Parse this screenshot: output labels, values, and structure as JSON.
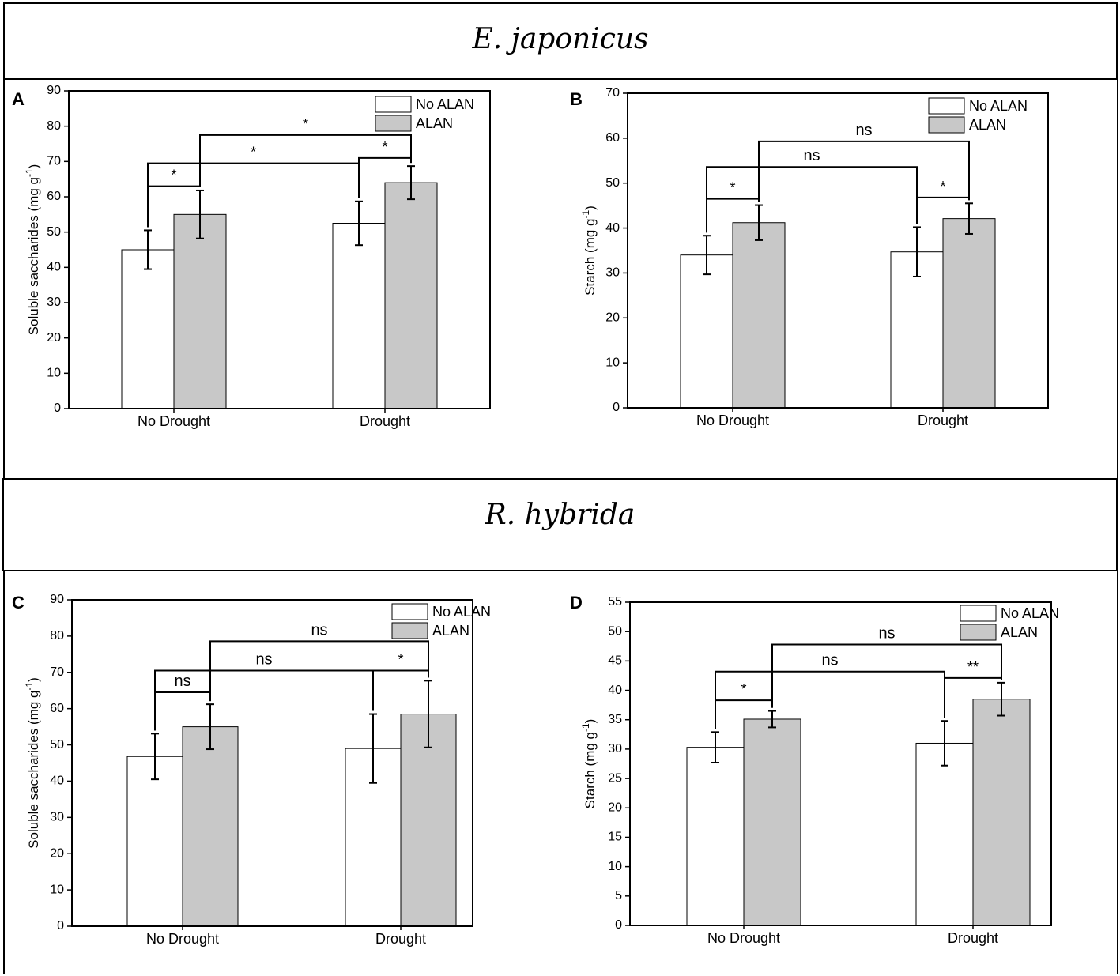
{
  "figure": {
    "species_top": "E. japonicus",
    "species_bottom": "R. hybrida",
    "colors": {
      "no_alan": "#ffffff",
      "alan": "#c8c8c8",
      "axis": "#000000"
    }
  },
  "chart_data": [
    {
      "panel": "A",
      "type": "bar",
      "ylabel": "Soluble saccharides (mg g-1)",
      "ylabel_main": "Soluble saccharides (mg g",
      "ylabel_sup": "-1",
      "ylabel_end": ")",
      "ylim": [
        0,
        90
      ],
      "yticks": [
        0,
        10,
        20,
        30,
        40,
        50,
        60,
        70,
        80,
        90
      ],
      "categories": [
        "No Drought",
        "Drought"
      ],
      "legend": [
        "No ALAN",
        "ALAN"
      ],
      "legend_position": "top-right",
      "series": [
        {
          "name": "No ALAN",
          "values": [
            45,
            52.5
          ],
          "errors": [
            5.5,
            6.2
          ]
        },
        {
          "name": "ALAN",
          "values": [
            55,
            64
          ],
          "errors": [
            6.8,
            4.7
          ]
        }
      ],
      "annotations": [
        {
          "text": "*",
          "from": [
            0,
            0
          ],
          "to": [
            0,
            1
          ],
          "level": 63
        },
        {
          "text": "*",
          "from": [
            1,
            0
          ],
          "to": [
            1,
            1
          ],
          "level": 71
        },
        {
          "text": "*",
          "from": [
            0,
            0
          ],
          "to": [
            1,
            0
          ],
          "level": 69.5
        },
        {
          "text": "*",
          "from": [
            0,
            1
          ],
          "to": [
            1,
            1
          ],
          "level": 77.5
        }
      ]
    },
    {
      "panel": "B",
      "type": "bar",
      "ylabel": "Starch (mg g-1)",
      "ylabel_main": "Starch (mg g",
      "ylabel_sup": "-1",
      "ylabel_end": ")",
      "ylim": [
        0,
        70
      ],
      "yticks": [
        0,
        10,
        20,
        30,
        40,
        50,
        60,
        70
      ],
      "categories": [
        "No Drought",
        "Drought"
      ],
      "legend": [
        "No ALAN",
        "ALAN"
      ],
      "legend_position": "top-right",
      "series": [
        {
          "name": "No ALAN",
          "values": [
            34,
            34.7
          ],
          "errors": [
            4.3,
            5.5
          ]
        },
        {
          "name": "ALAN",
          "values": [
            41.2,
            42.1
          ],
          "errors": [
            3.9,
            3.4
          ]
        }
      ],
      "annotations": [
        {
          "text": "*",
          "from": [
            0,
            0
          ],
          "to": [
            0,
            1
          ],
          "level": 46.5
        },
        {
          "text": "*",
          "from": [
            1,
            0
          ],
          "to": [
            1,
            1
          ],
          "level": 46.8
        },
        {
          "text": "ns",
          "from": [
            0,
            0
          ],
          "to": [
            1,
            0
          ],
          "level": 53.6
        },
        {
          "text": "ns",
          "from": [
            0,
            1
          ],
          "to": [
            1,
            1
          ],
          "level": 59.3
        }
      ]
    },
    {
      "panel": "C",
      "type": "bar",
      "ylabel": "Soluble saccharides (mg g-1)",
      "ylabel_main": "Soluble saccharides (mg g",
      "ylabel_sup": "-1",
      "ylabel_end": ")",
      "ylim": [
        0,
        90
      ],
      "yticks": [
        0,
        10,
        20,
        30,
        40,
        50,
        60,
        70,
        80,
        90
      ],
      "categories": [
        "No Drought",
        "Drought"
      ],
      "legend": [
        "No ALAN",
        "ALAN"
      ],
      "legend_position": "top-right",
      "series": [
        {
          "name": "No ALAN",
          "values": [
            46.8,
            49
          ],
          "errors": [
            6.3,
            9.5
          ]
        },
        {
          "name": "ALAN",
          "values": [
            55,
            58.5
          ],
          "errors": [
            6.2,
            9.2
          ]
        }
      ],
      "annotations": [
        {
          "text": "ns",
          "from": [
            0,
            0
          ],
          "to": [
            0,
            1
          ],
          "level": 64.5
        },
        {
          "text": "*",
          "from": [
            1,
            0
          ],
          "to": [
            1,
            1
          ],
          "level": 70.5
        },
        {
          "text": "ns",
          "from": [
            0,
            0
          ],
          "to": [
            1,
            0
          ],
          "level": 70.5
        },
        {
          "text": "ns",
          "from": [
            0,
            1
          ],
          "to": [
            1,
            1
          ],
          "level": 78.6
        }
      ]
    },
    {
      "panel": "D",
      "type": "bar",
      "ylabel": "Starch (mg g-1)",
      "ylabel_main": "Starch (mg g",
      "ylabel_sup": "-1",
      "ylabel_end": ")",
      "ylim": [
        0,
        55
      ],
      "yticks": [
        0,
        5,
        10,
        15,
        20,
        25,
        30,
        35,
        40,
        45,
        50,
        55
      ],
      "categories": [
        "No Drought",
        "Drought"
      ],
      "legend": [
        "No ALAN",
        "ALAN"
      ],
      "legend_position": "top-right",
      "series": [
        {
          "name": "No ALAN",
          "values": [
            30.3,
            31
          ],
          "errors": [
            2.6,
            3.8
          ]
        },
        {
          "name": "ALAN",
          "values": [
            35.1,
            38.5
          ],
          "errors": [
            1.4,
            2.8
          ]
        }
      ],
      "annotations": [
        {
          "text": "*",
          "from": [
            0,
            0
          ],
          "to": [
            0,
            1
          ],
          "level": 38.3
        },
        {
          "text": "**",
          "from": [
            1,
            0
          ],
          "to": [
            1,
            1
          ],
          "level": 42.1
        },
        {
          "text": "ns",
          "from": [
            0,
            0
          ],
          "to": [
            1,
            0
          ],
          "level": 43.2
        },
        {
          "text": "ns",
          "from": [
            0,
            1
          ],
          "to": [
            1,
            1
          ],
          "level": 47.8
        }
      ]
    }
  ]
}
